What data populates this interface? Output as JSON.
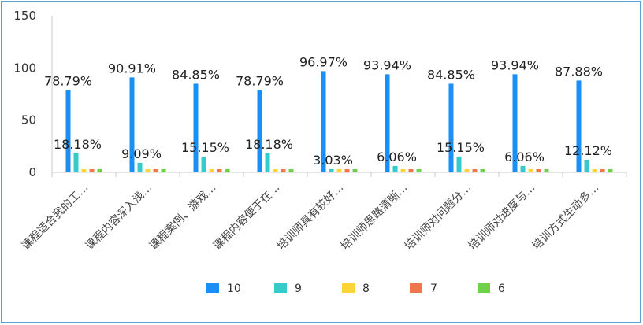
{
  "chart_data": {
    "type": "bar",
    "categories": [
      "课程适合我的工…",
      "课程内容深入浅…",
      "课程案例、游戏…",
      "课程内容便于在…",
      "培训师具有较好…",
      "培训师思路清晰…",
      "培训师对问题分…",
      "培训师对进度与…",
      "培训方式生动多…"
    ],
    "series": [
      {
        "name": "10",
        "color": "#1a8ff5",
        "values": [
          78.79,
          90.91,
          84.85,
          78.79,
          96.97,
          93.94,
          84.85,
          93.94,
          87.88
        ],
        "labels": [
          "78.79%",
          "90.91%",
          "84.85%",
          "78.79%",
          "96.97%",
          "93.94%",
          "84.85%",
          "93.94%",
          "87.88%"
        ]
      },
      {
        "name": "9",
        "color": "#36cbcb",
        "values": [
          18.18,
          9.09,
          15.15,
          18.18,
          3.03,
          6.06,
          15.15,
          6.06,
          12.12
        ],
        "labels": [
          "18.18%",
          "9.09%",
          "15.15%",
          "18.18%",
          "3.03%",
          "6.06%",
          "15.15%",
          "6.06%",
          "12.12%"
        ]
      },
      {
        "name": "8",
        "color": "#fbd437",
        "values": [
          3.03,
          3.03,
          3.03,
          3.03,
          3.03,
          3.03,
          3.03,
          3.03,
          3.03
        ]
      },
      {
        "name": "7",
        "color": "#f2764b",
        "values": [
          3.03,
          3.03,
          3.03,
          3.03,
          3.03,
          3.03,
          3.03,
          3.03,
          3.03
        ]
      },
      {
        "name": "6",
        "color": "#6fd049",
        "values": [
          3.03,
          3.03,
          3.03,
          3.03,
          3.03,
          3.03,
          3.03,
          3.03,
          3.03
        ]
      }
    ],
    "yticks": [
      0,
      50,
      100,
      150
    ],
    "ylim": [
      0,
      150
    ],
    "legend": "bottom",
    "grid": false
  }
}
